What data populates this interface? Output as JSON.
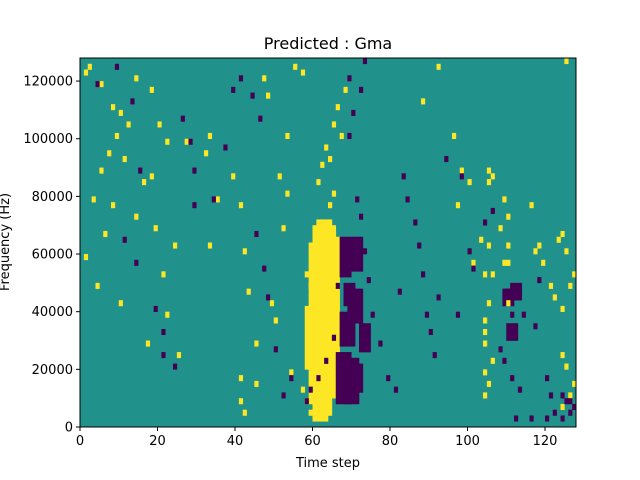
{
  "chart_data": {
    "type": "heatmap",
    "title": "Predicted : Gma",
    "xlabel": "Time step",
    "ylabel": "Frequency (Hz)",
    "xlim": [
      0,
      128
    ],
    "ylim": [
      0,
      128000
    ],
    "x_ticks": [
      0,
      20,
      40,
      60,
      80,
      100,
      120
    ],
    "y_ticks": [
      0,
      20000,
      40000,
      60000,
      80000,
      100000,
      120000
    ],
    "y_tick_labels": [
      "0",
      "20000",
      "40000",
      "60000",
      "80000",
      "100000",
      "120000"
    ],
    "grid": false,
    "n_time_steps": 128,
    "n_freq_bins": 64,
    "colors": {
      "background": "#21918c",
      "high": "#fde725",
      "low": "#440154"
    },
    "high_cells": [
      [
        1,
        61
      ],
      [
        5,
        59
      ],
      [
        8,
        55
      ],
      [
        10,
        54
      ],
      [
        12,
        52
      ],
      [
        9,
        50
      ],
      [
        5,
        44
      ],
      [
        2,
        62
      ],
      [
        3,
        39
      ],
      [
        7,
        47
      ],
      [
        6,
        33
      ],
      [
        11,
        46
      ],
      [
        8,
        38
      ],
      [
        1,
        29
      ],
      [
        4,
        24
      ],
      [
        10,
        21
      ],
      [
        14,
        60
      ],
      [
        18,
        58
      ],
      [
        20,
        52
      ],
      [
        22,
        49
      ],
      [
        18,
        43
      ],
      [
        16,
        42
      ],
      [
        14,
        36
      ],
      [
        19,
        34
      ],
      [
        24,
        31
      ],
      [
        21,
        26
      ],
      [
        22,
        19
      ],
      [
        17,
        14
      ],
      [
        25,
        12
      ],
      [
        27,
        49
      ],
      [
        32,
        47
      ],
      [
        33,
        50
      ],
      [
        33,
        31
      ],
      [
        35,
        39
      ],
      [
        39,
        43
      ],
      [
        41,
        38
      ],
      [
        42,
        30
      ],
      [
        43,
        23
      ],
      [
        45,
        14
      ],
      [
        41,
        8
      ],
      [
        45,
        7
      ],
      [
        41,
        4
      ],
      [
        42,
        2
      ],
      [
        47,
        60
      ],
      [
        48,
        57
      ],
      [
        53,
        50
      ],
      [
        51,
        43
      ],
      [
        53,
        40
      ],
      [
        52,
        34
      ],
      [
        50,
        18
      ],
      [
        49,
        21
      ],
      [
        57,
        6
      ],
      [
        58,
        4
      ],
      [
        59,
        2
      ],
      [
        55,
        62
      ],
      [
        57,
        61
      ],
      [
        54,
        9
      ],
      [
        58,
        26
      ],
      [
        59,
        24
      ],
      [
        60,
        30
      ],
      [
        61,
        42
      ],
      [
        62,
        45
      ],
      [
        63,
        48
      ],
      [
        65,
        52
      ],
      [
        66,
        55
      ],
      [
        68,
        58
      ],
      [
        67,
        50
      ],
      [
        64,
        46
      ],
      [
        65,
        40
      ],
      [
        62,
        35
      ],
      [
        64,
        38
      ],
      [
        88,
        56
      ],
      [
        92,
        62
      ],
      [
        96,
        50
      ],
      [
        98,
        44
      ],
      [
        100,
        42
      ],
      [
        97,
        38
      ],
      [
        103,
        32
      ],
      [
        101,
        28
      ],
      [
        104,
        26
      ],
      [
        105,
        21
      ],
      [
        104,
        18
      ],
      [
        108,
        34
      ],
      [
        110,
        31
      ],
      [
        110,
        28
      ],
      [
        116,
        38
      ],
      [
        118,
        31
      ],
      [
        117,
        30
      ],
      [
        119,
        28
      ],
      [
        121,
        24
      ],
      [
        122,
        22
      ],
      [
        124,
        20
      ],
      [
        124,
        12
      ],
      [
        125,
        10
      ],
      [
        127,
        7
      ],
      [
        126,
        5
      ],
      [
        124,
        3
      ],
      [
        124,
        33
      ],
      [
        125,
        63
      ],
      [
        123,
        32
      ],
      [
        125,
        30
      ],
      [
        127,
        26
      ],
      [
        126,
        24
      ],
      [
        106,
        26
      ],
      [
        109,
        28
      ],
      [
        105,
        31
      ],
      [
        110,
        21
      ],
      [
        105,
        44
      ],
      [
        105,
        42
      ],
      [
        109,
        39
      ],
      [
        110,
        36
      ],
      [
        106,
        43
      ],
      [
        104,
        14
      ],
      [
        104,
        9
      ],
      [
        104,
        5
      ],
      [
        105,
        7
      ],
      [
        104,
        16
      ],
      [
        106,
        11
      ]
    ],
    "high_bands": [
      [
        58,
        60,
        10,
        20
      ],
      [
        59,
        62,
        4,
        31
      ],
      [
        60,
        63,
        1,
        34
      ],
      [
        61,
        64,
        2,
        35
      ],
      [
        62,
        65,
        5,
        34
      ],
      [
        63,
        65,
        8,
        33
      ],
      [
        64,
        66,
        10,
        32
      ],
      [
        61,
        64,
        9,
        32
      ],
      [
        60,
        62,
        7,
        30
      ]
    ],
    "low_cells": [
      [
        4,
        59
      ],
      [
        9,
        62
      ],
      [
        13,
        56
      ],
      [
        15,
        44
      ],
      [
        11,
        32
      ],
      [
        14,
        28
      ],
      [
        19,
        20
      ],
      [
        21,
        16
      ],
      [
        21,
        12
      ],
      [
        24,
        10
      ],
      [
        26,
        53
      ],
      [
        28,
        49
      ],
      [
        29,
        44
      ],
      [
        29,
        38
      ],
      [
        34,
        39
      ],
      [
        37,
        48
      ],
      [
        39,
        58
      ],
      [
        41,
        60
      ],
      [
        44,
        57
      ],
      [
        46,
        53
      ],
      [
        45,
        33
      ],
      [
        47,
        27
      ],
      [
        48,
        22
      ],
      [
        50,
        13
      ],
      [
        52,
        5
      ],
      [
        54,
        8
      ],
      [
        58,
        4
      ],
      [
        59,
        6
      ],
      [
        61,
        8
      ],
      [
        63,
        11
      ],
      [
        65,
        15
      ],
      [
        66,
        24
      ],
      [
        69,
        50
      ],
      [
        70,
        54
      ],
      [
        72,
        58
      ],
      [
        69,
        60
      ],
      [
        73,
        63
      ],
      [
        71,
        39
      ],
      [
        72,
        36
      ],
      [
        73,
        30
      ],
      [
        74,
        25
      ],
      [
        75,
        19
      ],
      [
        77,
        14
      ],
      [
        79,
        8
      ],
      [
        81,
        6
      ],
      [
        82,
        23
      ],
      [
        83,
        43
      ],
      [
        84,
        39
      ],
      [
        86,
        35
      ],
      [
        87,
        31
      ],
      [
        88,
        26
      ],
      [
        89,
        19
      ],
      [
        90,
        16
      ],
      [
        91,
        12
      ],
      [
        92,
        22
      ],
      [
        94,
        46
      ],
      [
        98,
        43
      ],
      [
        97,
        19
      ],
      [
        100,
        30
      ],
      [
        101,
        27
      ],
      [
        104,
        35
      ],
      [
        106,
        37
      ],
      [
        110,
        23
      ],
      [
        111,
        19
      ],
      [
        108,
        13
      ],
      [
        109,
        11
      ],
      [
        111,
        8
      ],
      [
        113,
        6
      ],
      [
        114,
        19
      ],
      [
        117,
        17
      ],
      [
        118,
        25
      ],
      [
        120,
        8
      ],
      [
        121,
        5
      ],
      [
        124,
        5
      ],
      [
        125,
        4
      ],
      [
        126,
        4
      ],
      [
        127,
        3
      ],
      [
        126,
        2
      ],
      [
        124,
        1
      ],
      [
        122,
        2
      ],
      [
        120,
        1
      ],
      [
        116,
        1
      ],
      [
        112,
        1
      ]
    ],
    "low_bands": [
      [
        66,
        69,
        4,
        12
      ],
      [
        67,
        70,
        14,
        19
      ],
      [
        67,
        69,
        26,
        32
      ],
      [
        68,
        71,
        4,
        11
      ],
      [
        70,
        72,
        27,
        32
      ],
      [
        68,
        70,
        21,
        24
      ],
      [
        72,
        74,
        13,
        17
      ],
      [
        69,
        72,
        18,
        23
      ],
      [
        70,
        72,
        6,
        10
      ],
      [
        110,
        112,
        15,
        17
      ],
      [
        111,
        113,
        22,
        24
      ],
      [
        109,
        111,
        21,
        23
      ]
    ]
  }
}
